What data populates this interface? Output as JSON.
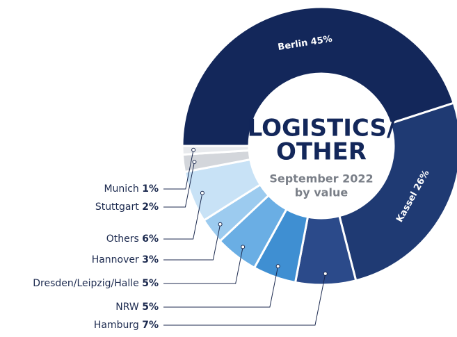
{
  "chart_data": {
    "type": "donut",
    "title": [
      "LOGISTICS/",
      "OTHER"
    ],
    "subtitle": [
      "September 2022",
      "by value"
    ],
    "categories": [
      "Berlin",
      "Kassel",
      "Hamburg",
      "NRW",
      "Dresden/Leipzig/Halle",
      "Hannover",
      "Others",
      "Stuttgart",
      "Munich"
    ],
    "values": [
      45,
      26,
      7,
      5,
      5,
      3,
      6,
      2,
      1
    ],
    "value_labels": [
      "45%",
      "26%",
      "7%",
      "5%",
      "5%",
      "3%",
      "6%",
      "2%",
      "1%"
    ],
    "colors": [
      "#13275a",
      "#1f3a73",
      "#2b4a8a",
      "#3f8fd2",
      "#6aaee4",
      "#9ccbef",
      "#c8e2f6",
      "#d3d6db",
      "#e8eaed"
    ]
  }
}
